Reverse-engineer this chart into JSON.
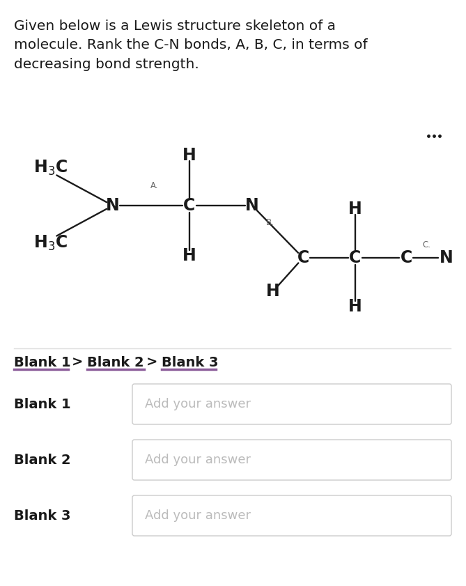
{
  "background_color": "#ffffff",
  "title_text": "Given below is a Lewis structure skeleton of a\nmolecule. Rank the C-N bonds, A, B, C, in terms of\ndecreasing bond strength.",
  "title_fontsize": 14.5,
  "title_color": "#1a1a1a",
  "dots_color": "#1a1a1a",
  "molecule_color": "#1a1a1a",
  "label_small_color": "#666666",
  "blank_line_color": "#8b5c99",
  "blank_border_color": "#cccccc",
  "blank_label_color": "#1a1a1a",
  "blank_placeholder_color": "#bbbbbb",
  "separator_color": "#dddddd",
  "blank_text": "Add your answer",
  "blank1_label": "Blank 1",
  "blank2_label": "Blank 2",
  "blank3_label": "Blank 3"
}
